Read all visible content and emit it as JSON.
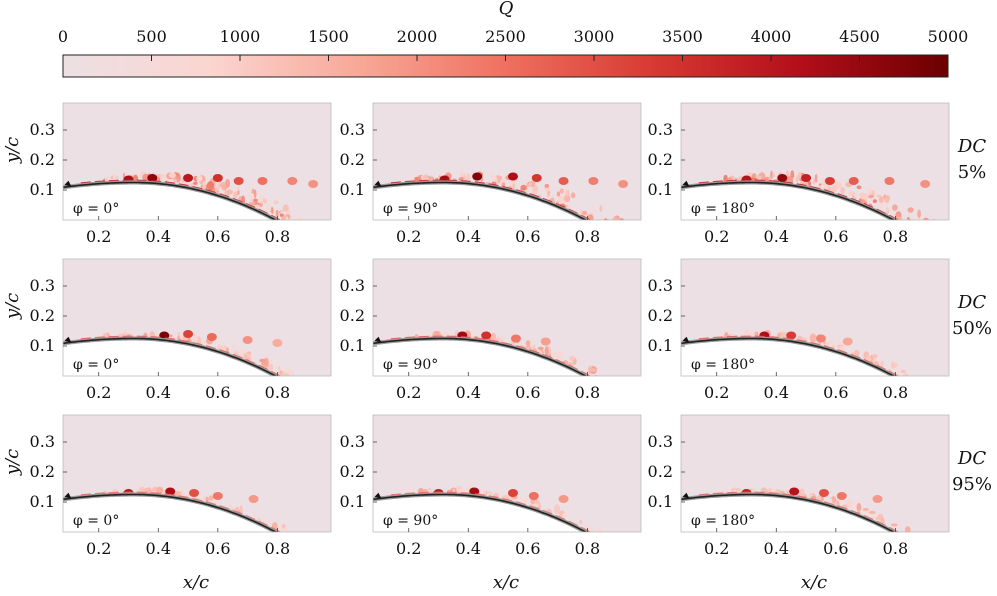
{
  "chart_data": {
    "type": "heatmap",
    "colorbar": {
      "label": "Q",
      "min": 0,
      "max": 5000,
      "ticks": [
        0,
        500,
        1000,
        1500,
        2000,
        2500,
        3000,
        3500,
        4000,
        4500,
        5000
      ],
      "colors": [
        "#ece0e4",
        "#fbd5d0",
        "#f8a898",
        "#ef7060",
        "#d73a32",
        "#b30e1a",
        "#6a0000"
      ]
    },
    "xlabel": "x/c",
    "ylabel": "y/c",
    "xlim": [
      0.08,
      0.98
    ],
    "ylim": [
      0.0,
      0.39
    ],
    "xticks": [
      "0.2",
      "0.4",
      "0.6",
      "0.8"
    ],
    "yticks": [
      "0.1",
      "0.2",
      "0.3"
    ],
    "columns": [
      {
        "phase": "φ = 0°"
      },
      {
        "phase": "φ = 90°"
      },
      {
        "phase": "φ = 180°"
      }
    ],
    "rows": [
      {
        "line1": "DC",
        "line2": "5%",
        "intensity": 1.0,
        "spread": 1.0
      },
      {
        "line1": "DC",
        "line2": "50%",
        "intensity": 0.75,
        "spread": 0.55
      },
      {
        "line1": "DC",
        "line2": "95%",
        "intensity": 0.7,
        "spread": 0.5
      }
    ],
    "series": [
      {
        "row": 0,
        "col": 0,
        "blobs": [
          [
            0.3,
            0.135,
            4200
          ],
          [
            0.38,
            0.14,
            4600
          ],
          [
            0.5,
            0.14,
            4000
          ],
          [
            0.6,
            0.14,
            3500
          ],
          [
            0.67,
            0.13,
            3000
          ],
          [
            0.75,
            0.13,
            2500
          ],
          [
            0.85,
            0.13,
            2200
          ],
          [
            0.92,
            0.12,
            2000
          ]
        ]
      },
      {
        "row": 0,
        "col": 1,
        "blobs": [
          [
            0.32,
            0.135,
            4300
          ],
          [
            0.43,
            0.145,
            4700
          ],
          [
            0.55,
            0.145,
            4200
          ],
          [
            0.63,
            0.14,
            3400
          ],
          [
            0.72,
            0.13,
            2800
          ],
          [
            0.82,
            0.13,
            2300
          ],
          [
            0.92,
            0.12,
            2000
          ]
        ]
      },
      {
        "row": 0,
        "col": 2,
        "blobs": [
          [
            0.3,
            0.135,
            4100
          ],
          [
            0.42,
            0.14,
            4500
          ],
          [
            0.5,
            0.14,
            3800
          ],
          [
            0.58,
            0.13,
            3300
          ],
          [
            0.66,
            0.13,
            2800
          ],
          [
            0.78,
            0.13,
            2400
          ],
          [
            0.9,
            0.12,
            2000
          ]
        ]
      },
      {
        "row": 1,
        "col": 0,
        "blobs": [
          [
            0.42,
            0.135,
            4800
          ],
          [
            0.5,
            0.14,
            3200
          ],
          [
            0.58,
            0.13,
            2600
          ],
          [
            0.7,
            0.12,
            2000
          ],
          [
            0.8,
            0.11,
            1600
          ]
        ]
      },
      {
        "row": 1,
        "col": 1,
        "blobs": [
          [
            0.38,
            0.135,
            4400
          ],
          [
            0.46,
            0.135,
            3500
          ],
          [
            0.56,
            0.125,
            2400
          ],
          [
            0.66,
            0.115,
            1800
          ]
        ]
      },
      {
        "row": 1,
        "col": 2,
        "blobs": [
          [
            0.36,
            0.135,
            4200
          ],
          [
            0.45,
            0.135,
            3300
          ],
          [
            0.55,
            0.125,
            2200
          ],
          [
            0.64,
            0.115,
            1700
          ]
        ]
      },
      {
        "row": 2,
        "col": 0,
        "blobs": [
          [
            0.3,
            0.13,
            4000
          ],
          [
            0.44,
            0.135,
            4200
          ],
          [
            0.52,
            0.13,
            3000
          ],
          [
            0.6,
            0.12,
            2400
          ],
          [
            0.72,
            0.11,
            1900
          ]
        ]
      },
      {
        "row": 2,
        "col": 1,
        "blobs": [
          [
            0.3,
            0.13,
            3900
          ],
          [
            0.42,
            0.135,
            4300
          ],
          [
            0.55,
            0.13,
            3200
          ],
          [
            0.62,
            0.12,
            2500
          ],
          [
            0.72,
            0.11,
            1900
          ]
        ]
      },
      {
        "row": 2,
        "col": 2,
        "blobs": [
          [
            0.3,
            0.13,
            3900
          ],
          [
            0.46,
            0.135,
            4100
          ],
          [
            0.56,
            0.13,
            3000
          ],
          [
            0.62,
            0.12,
            2400
          ],
          [
            0.74,
            0.11,
            1900
          ]
        ]
      }
    ]
  }
}
